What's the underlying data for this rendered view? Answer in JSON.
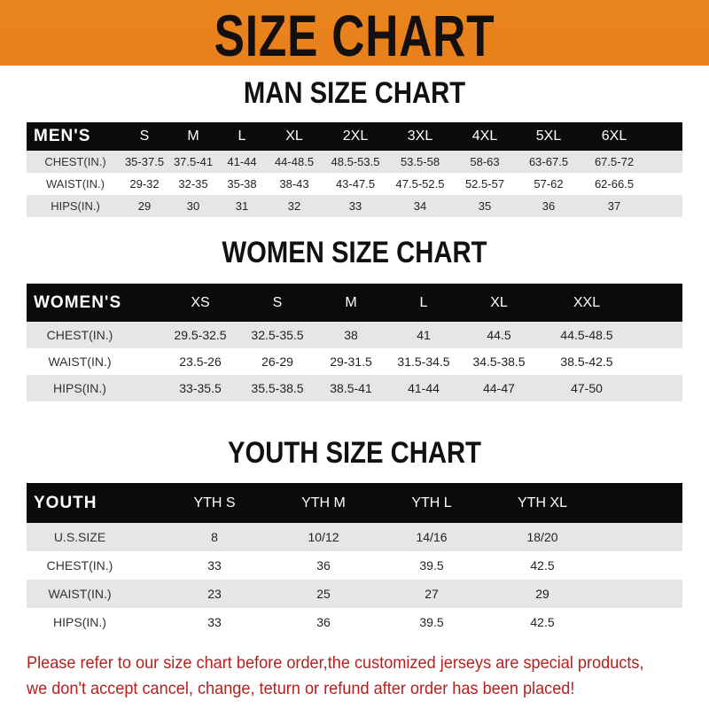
{
  "banner": {
    "title": "SIZE CHART",
    "color": "#e8801c"
  },
  "men": {
    "title": "MAN SIZE CHART",
    "header": [
      "MEN'S",
      "S",
      "M",
      "L",
      "XL",
      "2XL",
      "3XL",
      "4XL",
      "5XL",
      "6XL"
    ],
    "rows": [
      [
        "CHEST(IN.)",
        "35-37.5",
        "37.5-41",
        "41-44",
        "44-48.5",
        "48.5-53.5",
        "53.5-58",
        "58-63",
        "63-67.5",
        "67.5-72"
      ],
      [
        "WAIST(IN.)",
        "29-32",
        "32-35",
        "35-38",
        "38-43",
        "43-47.5",
        "47.5-52.5",
        "52.5-57",
        "57-62",
        "62-66.5"
      ],
      [
        "HIPS(IN.)",
        "29",
        "30",
        "31",
        "32",
        "33",
        "34",
        "35",
        "36",
        "37"
      ]
    ]
  },
  "women": {
    "title": "WOMEN SIZE CHART",
    "header": [
      "WOMEN'S",
      "XS",
      "S",
      "M",
      "L",
      "XL",
      "XXL"
    ],
    "rows": [
      [
        "CHEST(IN.)",
        "29.5-32.5",
        "32.5-35.5",
        "38",
        "41",
        "44.5",
        "44.5-48.5"
      ],
      [
        "WAIST(IN.)",
        "23.5-26",
        "26-29",
        "29-31.5",
        "31.5-34.5",
        "34.5-38.5",
        "38.5-42.5"
      ],
      [
        "HIPS(IN.)",
        "33-35.5",
        "35.5-38.5",
        "38.5-41",
        "41-44",
        "44-47",
        "47-50"
      ]
    ]
  },
  "youth": {
    "title": "YOUTH SIZE CHART",
    "header": [
      "YOUTH",
      "YTH S",
      "YTH M",
      "YTH L",
      "YTH XL"
    ],
    "rows": [
      [
        "U.S.SIZE",
        "8",
        "10/12",
        "14/16",
        "18/20"
      ],
      [
        "CHEST(IN.)",
        "33",
        "36",
        "39.5",
        "42.5"
      ],
      [
        "WAIST(IN.)",
        "23",
        "25",
        "27",
        "29"
      ],
      [
        "HIPS(IN.)",
        "33",
        "36",
        "39.5",
        "42.5"
      ]
    ]
  },
  "notice": {
    "line1": "Please refer to our size chart before order,the customized jerseys are special products,",
    "line2": "we don't accept cancel, change, teturn or refund after order has been placed!",
    "color": "#b5211f"
  }
}
